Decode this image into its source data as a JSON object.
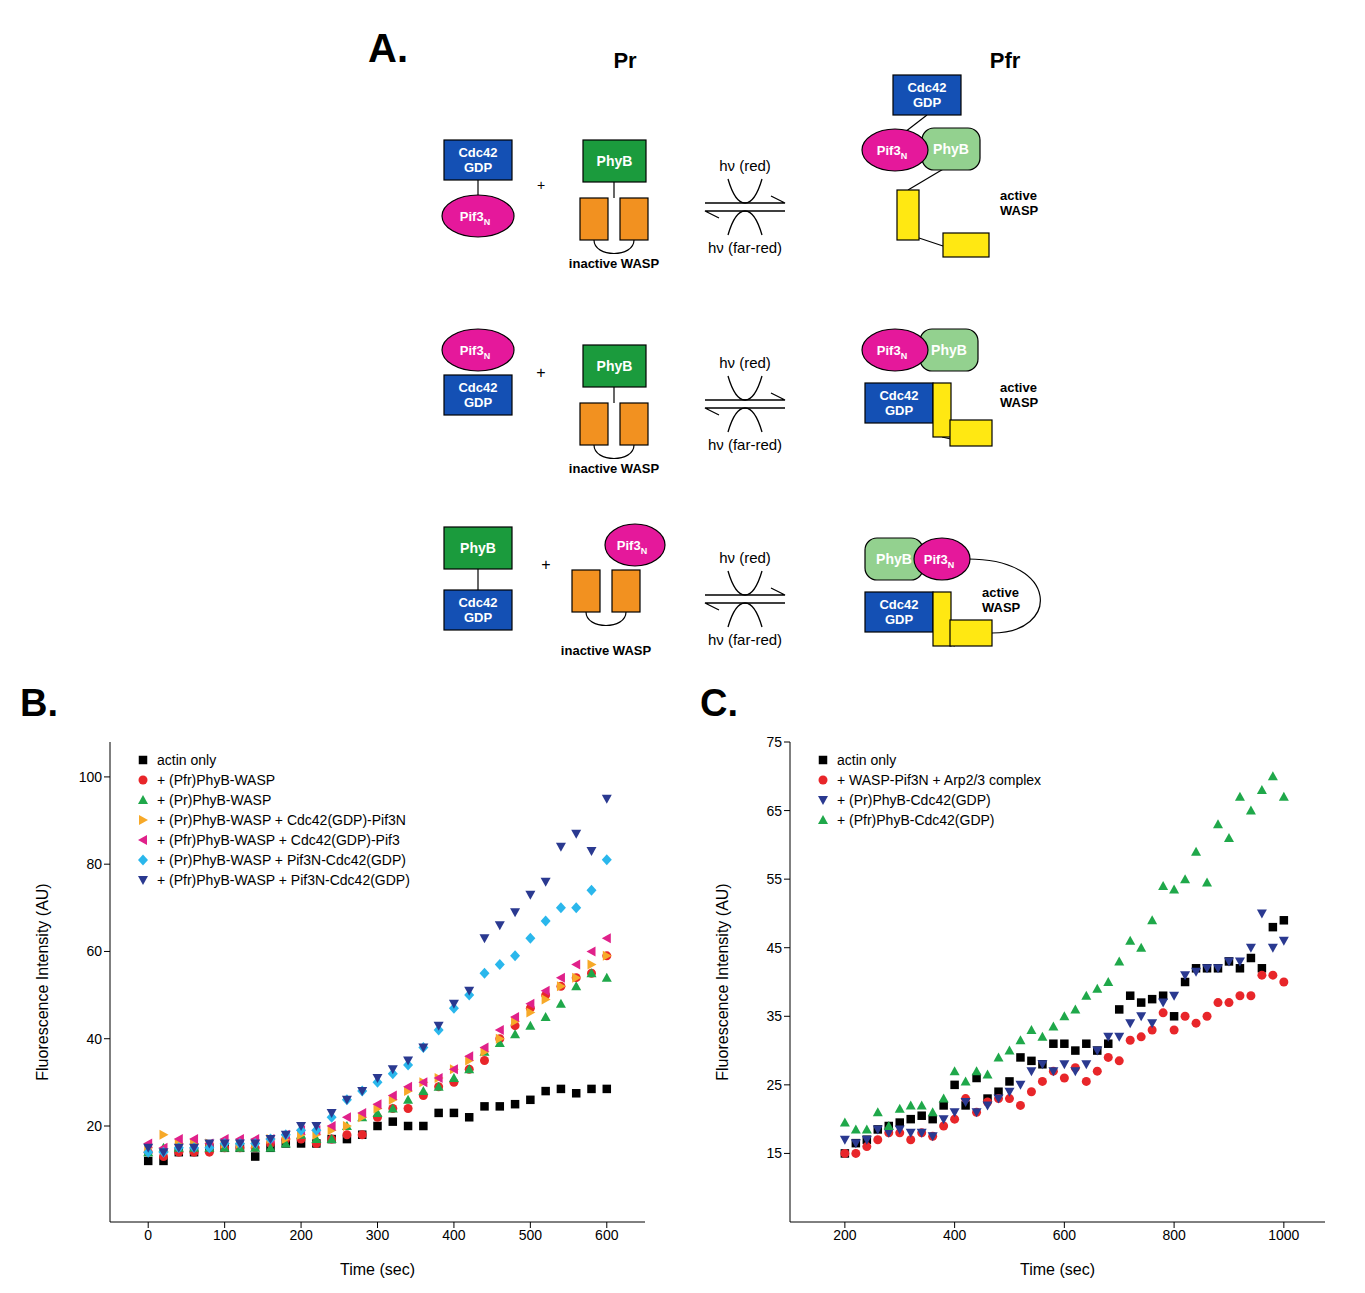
{
  "diagram": {
    "label": "A.",
    "states": [
      "Pr",
      "Pfr"
    ],
    "cdc42": [
      "Cdc42",
      "GDP"
    ],
    "pif3": {
      "text": "Pif3",
      "sub": "N"
    },
    "phyb": "PhyB",
    "plus": "+",
    "light": [
      "hν (red)",
      "hν (far-red)"
    ],
    "inactive_wasp": "inactive WASP",
    "active_wasp": [
      "active",
      "WASP"
    ]
  },
  "chart_data": [
    {
      "type": "scatter",
      "panel_label": "B.",
      "x_label": "Time (sec)",
      "y_label": "Fluorescence Intensity (AU)",
      "legend": "upper left",
      "grid": false,
      "x": [
        0,
        20,
        40,
        60,
        80,
        100,
        120,
        140,
        160,
        180,
        200,
        220,
        240,
        260,
        280,
        300,
        320,
        340,
        360,
        380,
        400,
        420,
        440,
        460,
        480,
        500,
        520,
        540,
        560,
        580,
        600
      ],
      "xlim": [
        -50,
        650
      ],
      "xticks": [
        0,
        100,
        200,
        300,
        400,
        500,
        600
      ],
      "ylim": [
        -2,
        108
      ],
      "yticks": [
        20,
        40,
        60,
        80,
        100
      ],
      "series": [
        {
          "name": "actin only",
          "color": "#000000",
          "marker": "square",
          "values": [
            12,
            12,
            14,
            14,
            15,
            15,
            15,
            13,
            15,
            16,
            16,
            16,
            17,
            17,
            18,
            20,
            21,
            20,
            20,
            23,
            23,
            22,
            24.5,
            24.5,
            25,
            26,
            28,
            28.5,
            27.5,
            28.5,
            28.5
          ]
        },
        {
          "name": "+ (Pfr)PhyB-WASP",
          "color": "#e8262a",
          "marker": "circle",
          "values": [
            14,
            13,
            14,
            14,
            14,
            15,
            15,
            15,
            16,
            17,
            17,
            16,
            17,
            18,
            18,
            22,
            24,
            24,
            27,
            29,
            30,
            33,
            35,
            40,
            43,
            47,
            50,
            52,
            54,
            55,
            59
          ]
        },
        {
          "name": "+ (Pr)PhyB-WASP",
          "color": "#1fa84a",
          "marker": "triangle-up",
          "values": [
            14,
            15,
            15,
            15,
            15,
            15,
            15,
            15,
            15,
            16,
            18,
            17,
            17,
            20,
            22,
            23,
            24,
            26,
            28,
            29,
            31,
            33,
            37,
            39,
            41,
            43,
            45,
            48,
            52,
            55,
            54
          ]
        },
        {
          "name": "+ (Pr)PhyB-WASP + Cdc42(GDP)-Pif3N",
          "color": "#f7a928",
          "marker": "triangle-right",
          "values": [
            15,
            18,
            16,
            16,
            16,
            16,
            16,
            16,
            17,
            17,
            18,
            18,
            19,
            20,
            22,
            24,
            26,
            28,
            30,
            31,
            33,
            35,
            37,
            40,
            44,
            46,
            49,
            52,
            54,
            57,
            59
          ]
        },
        {
          "name": "+ (Pfr)PhyB-WASP + Cdc42(GDP)-Pif3",
          "color": "#e0218a",
          "marker": "triangle-left",
          "values": [
            16,
            15,
            17,
            17,
            16,
            17,
            17,
            17,
            17,
            18,
            19,
            19,
            20,
            22,
            23,
            25,
            27,
            29,
            30,
            31,
            33,
            36,
            38,
            42,
            45,
            48,
            51,
            54,
            57,
            60,
            63
          ]
        },
        {
          "name": "+ (Pr)PhyB-WASP + Pif3N-Cdc42(GDP)",
          "color": "#2ab7ec",
          "marker": "diamond",
          "values": [
            14,
            14,
            15,
            15,
            15,
            16,
            16,
            16,
            17,
            18,
            19,
            19,
            22,
            26,
            28,
            30,
            32,
            34,
            38,
            42,
            47,
            50,
            55,
            57,
            59,
            63,
            67,
            70,
            70,
            74,
            81
          ]
        },
        {
          "name": "+ (Pfr)PhyB-WASP + Pif3N-Cdc42(GDP)",
          "color": "#2a3990",
          "marker": "triangle-down",
          "values": [
            15,
            14,
            15,
            15,
            16,
            16,
            16,
            16,
            17,
            18,
            20,
            20,
            23,
            26,
            28,
            31,
            33,
            35,
            38,
            43,
            48,
            51,
            63,
            66,
            69,
            73,
            76,
            84,
            87,
            83,
            95
          ]
        }
      ]
    },
    {
      "type": "scatter",
      "panel_label": "C.",
      "x_label": "Time (sec)",
      "y_label": "Fluorescence Intensity (AU)",
      "legend": "upper left",
      "grid": false,
      "x": [
        200,
        220,
        240,
        260,
        280,
        300,
        320,
        340,
        360,
        380,
        400,
        420,
        440,
        460,
        480,
        500,
        520,
        540,
        560,
        580,
        600,
        620,
        640,
        660,
        680,
        700,
        720,
        740,
        760,
        780,
        800,
        820,
        840,
        860,
        880,
        900,
        920,
        940,
        960,
        980,
        1000
      ],
      "xlim": [
        100,
        1075
      ],
      "xticks": [
        200,
        400,
        600,
        800,
        1000
      ],
      "ylim": [
        5,
        75
      ],
      "yticks": [
        15,
        25,
        35,
        45,
        55,
        65,
        75
      ],
      "series": [
        {
          "name": "actin only",
          "color": "#000000",
          "marker": "square",
          "values": [
            15,
            16.5,
            17,
            18.5,
            19,
            19.5,
            20,
            20.5,
            20,
            22,
            25,
            22,
            26,
            23,
            24,
            25.5,
            29,
            28.5,
            28,
            31,
            31,
            30,
            31,
            30,
            31,
            36,
            38,
            37,
            37.5,
            38,
            35,
            40,
            42,
            42,
            42,
            43,
            42,
            43.5,
            42,
            48,
            49
          ]
        },
        {
          "name": "+ WASP-Pif3N + Arp2/3 complex",
          "color": "#e8262a",
          "marker": "circle",
          "values": [
            15,
            15,
            16,
            17,
            18,
            18,
            17,
            18,
            17.5,
            19,
            20,
            23,
            21,
            22.5,
            23,
            23,
            22,
            24,
            25.5,
            27,
            26,
            27.5,
            25.5,
            27,
            29,
            28.5,
            31.5,
            32,
            33,
            35.5,
            33,
            35,
            34,
            35,
            37,
            37,
            38,
            38,
            41,
            41,
            40
          ]
        },
        {
          "name": "+ (Pr)PhyB-Cdc42(GDP)",
          "color": "#2a3990",
          "marker": "triangle-down",
          "values": [
            17,
            16.5,
            17,
            18.5,
            18,
            18.5,
            18,
            18,
            17.5,
            20,
            21,
            22.5,
            21,
            22,
            23,
            24,
            25,
            27,
            28,
            27,
            28,
            27,
            28,
            30,
            32,
            32,
            34,
            35,
            34,
            37,
            38,
            41,
            41.5,
            42,
            42,
            43,
            43,
            45,
            50,
            45,
            46
          ]
        },
        {
          "name": "+ (Pfr)PhyB-Cdc42(GDP)",
          "color": "#1fa84a",
          "marker": "triangle-up",
          "values": [
            19.5,
            18.5,
            18.5,
            21,
            19,
            21.5,
            22,
            22,
            21,
            23,
            27,
            25.5,
            27,
            26.5,
            29,
            30,
            31.5,
            33,
            32,
            33.5,
            35,
            36,
            38,
            39,
            40,
            43,
            46,
            45,
            49,
            54,
            53.5,
            55,
            59,
            54.5,
            63,
            61,
            67,
            65,
            68,
            70,
            67
          ]
        }
      ]
    }
  ]
}
